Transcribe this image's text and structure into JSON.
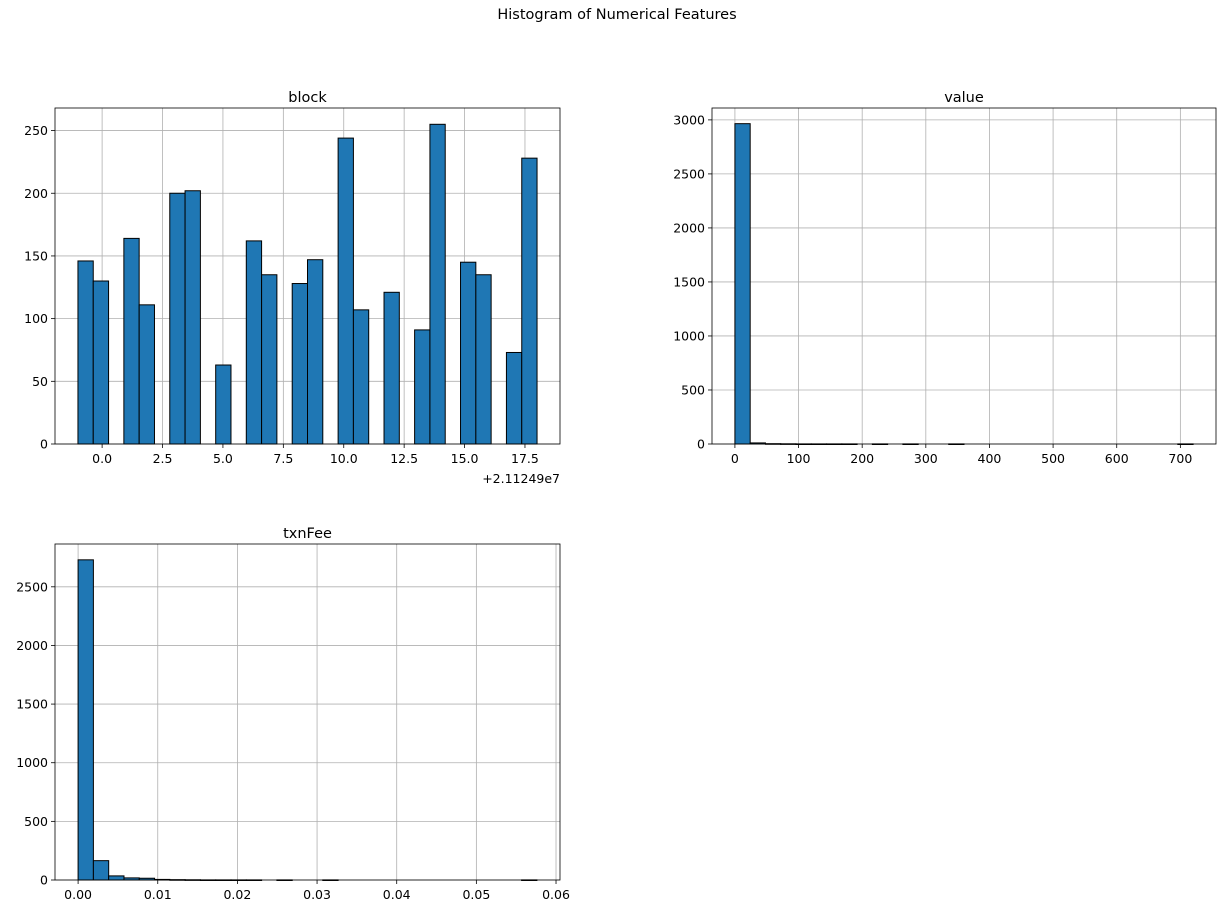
{
  "figure": {
    "title": "Histogram of Numerical Features"
  },
  "chart_data": [
    {
      "type": "bar",
      "title": "block",
      "xlabel": "",
      "ylabel": "",
      "x_offset_text": "+2.11249e7",
      "grid": true,
      "xlim": [
        -1.95,
        18.95
      ],
      "ylim": [
        0,
        268
      ],
      "xticks": [
        0.0,
        2.5,
        5.0,
        7.5,
        10.0,
        12.5,
        15.0,
        17.5
      ],
      "xtick_labels": [
        "0.0",
        "2.5",
        "5.0",
        "7.5",
        "10.0",
        "12.5",
        "15.0",
        "17.5"
      ],
      "yticks": [
        0,
        50,
        100,
        150,
        200,
        250
      ],
      "ytick_labels": [
        "0",
        "50",
        "100",
        "150",
        "200",
        "250"
      ],
      "bin_edges": [
        -1.0,
        -0.367,
        0.267,
        0.9,
        1.533,
        2.167,
        2.8,
        3.433,
        4.067,
        4.7,
        5.333,
        5.967,
        6.6,
        7.233,
        7.867,
        8.5,
        9.133,
        9.767,
        10.4,
        11.033,
        11.667,
        12.3,
        12.933,
        13.567,
        14.2,
        14.833,
        15.467,
        16.1,
        16.733,
        17.367,
        18.0
      ],
      "counts": [
        146,
        130,
        0,
        164,
        111,
        0,
        200,
        202,
        0,
        63,
        0,
        162,
        135,
        0,
        128,
        147,
        0,
        244,
        107,
        0,
        121,
        0,
        91,
        255,
        0,
        145,
        135,
        0,
        73,
        228
      ],
      "bar_color": "#1f77b4",
      "edge_color": "#000000"
    },
    {
      "type": "bar",
      "title": "value",
      "xlabel": "",
      "ylabel": "",
      "grid": true,
      "xlim": [
        -36,
        756
      ],
      "ylim": [
        0,
        3110
      ],
      "xticks": [
        0,
        100,
        200,
        300,
        400,
        500,
        600,
        700
      ],
      "xtick_labels": [
        "0",
        "100",
        "200",
        "300",
        "400",
        "500",
        "600",
        "700"
      ],
      "yticks": [
        0,
        500,
        1000,
        1500,
        2000,
        2500,
        3000
      ],
      "ytick_labels": [
        "0",
        "500",
        "1000",
        "1500",
        "2000",
        "2500",
        "3000"
      ],
      "bin_edges": [
        0,
        24,
        48,
        72,
        96,
        120,
        144,
        168,
        192,
        216,
        240,
        264,
        288,
        312,
        336,
        360,
        384,
        408,
        432,
        456,
        480,
        504,
        528,
        552,
        576,
        600,
        624,
        648,
        672,
        696,
        720
      ],
      "counts": [
        2965,
        10,
        3,
        2,
        1,
        1,
        1,
        1,
        0,
        1,
        0,
        1,
        0,
        0,
        1,
        0,
        0,
        0,
        0,
        0,
        0,
        0,
        0,
        0,
        0,
        0,
        0,
        0,
        0,
        1
      ],
      "bar_color": "#1f77b4",
      "edge_color": "#000000"
    },
    {
      "type": "bar",
      "title": "txnFee",
      "xlabel": "",
      "ylabel": "",
      "grid": true,
      "xlim": [
        -0.0029,
        0.0605
      ],
      "ylim": [
        0,
        2865
      ],
      "xticks": [
        0.0,
        0.01,
        0.02,
        0.03,
        0.04,
        0.05,
        0.06
      ],
      "xtick_labels": [
        "0.00",
        "0.01",
        "0.02",
        "0.03",
        "0.04",
        "0.05",
        "0.06"
      ],
      "yticks": [
        0,
        500,
        1000,
        1500,
        2000,
        2500
      ],
      "ytick_labels": [
        "0",
        "500",
        "1000",
        "1500",
        "2000",
        "2500"
      ],
      "bin_edges": [
        0.0,
        0.00192,
        0.00384,
        0.00576,
        0.00768,
        0.0096,
        0.01152,
        0.01344,
        0.01536,
        0.01728,
        0.0192,
        0.02112,
        0.02304,
        0.02496,
        0.02688,
        0.0288,
        0.03072,
        0.03264,
        0.03456,
        0.03648,
        0.0384,
        0.04032,
        0.04224,
        0.04416,
        0.04608,
        0.048,
        0.04992,
        0.05184,
        0.05376,
        0.05568,
        0.0576
      ],
      "counts": [
        2730,
        165,
        35,
        18,
        15,
        5,
        3,
        2,
        1,
        1,
        1,
        1,
        0,
        1,
        0,
        0,
        1,
        0,
        0,
        0,
        0,
        0,
        0,
        0,
        0,
        0,
        0,
        0,
        0,
        1
      ],
      "bar_color": "#1f77b4",
      "edge_color": "#000000"
    }
  ]
}
